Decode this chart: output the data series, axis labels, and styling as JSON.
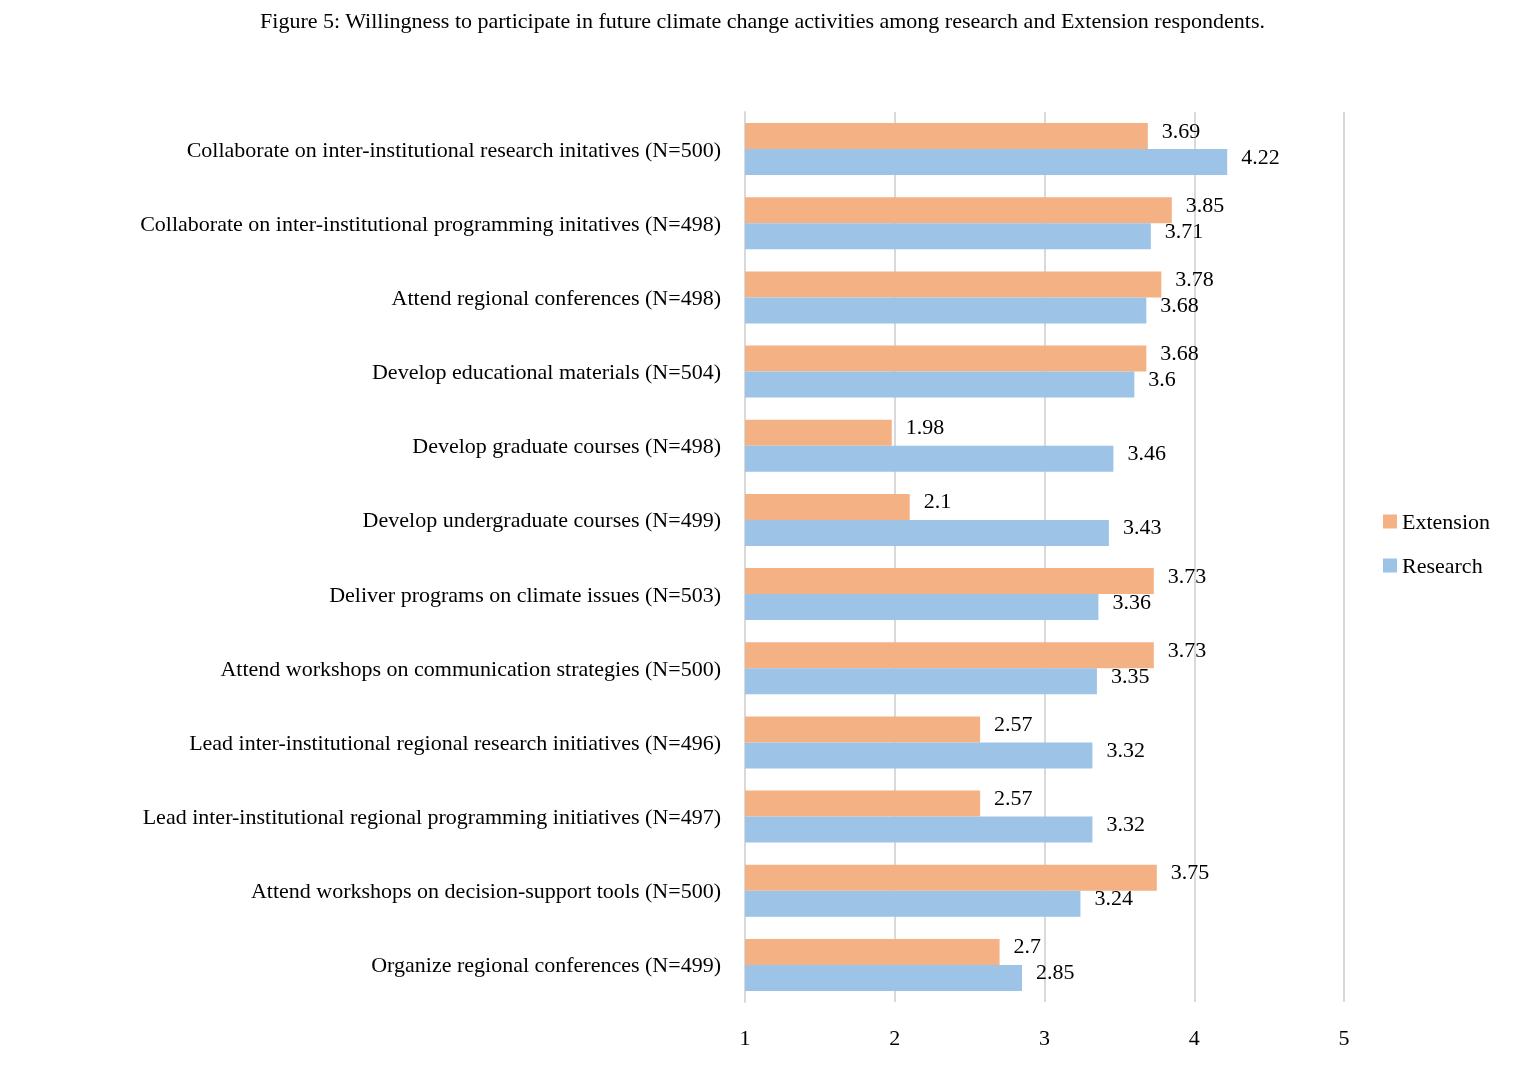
{
  "chart_data": {
    "type": "bar",
    "orientation": "horizontal",
    "title": "Figure 5: Willingness to participate in future climate change activities among research and Extension respondents.",
    "categories": [
      "Collaborate on inter-institutional research initatives (N=500)",
      "Collaborate on inter-institutional programming initatives (N=498)",
      "Attend regional conferences (N=498)",
      "Develop educational materials (N=504)",
      "Develop graduate courses (N=498)",
      "Develop undergraduate courses (N=499)",
      "Deliver programs on climate issues (N=503)",
      "Attend workshops on communication strategies (N=500)",
      "Lead inter-institutional regional research initiatives (N=496)",
      "Lead inter-institutional regional programming initiatives (N=497)",
      "Attend workshops on decision-support tools (N=500)",
      "Organize regional conferences (N=499)"
    ],
    "series": [
      {
        "name": "Extension",
        "color": "#f4b183",
        "values": [
          3.69,
          3.85,
          3.78,
          3.68,
          1.98,
          2.1,
          3.73,
          3.73,
          2.57,
          2.57,
          3.75,
          2.7
        ]
      },
      {
        "name": "Research",
        "color": "#9dc3e6",
        "values": [
          4.22,
          3.71,
          3.68,
          3.6,
          3.46,
          3.43,
          3.36,
          3.35,
          3.32,
          3.32,
          3.24,
          2.85
        ]
      }
    ],
    "xlim": [
      1,
      5
    ],
    "xticks": [
      1,
      2,
      3,
      4,
      5
    ],
    "grid": "x",
    "legend": "right",
    "data_labels": true
  }
}
